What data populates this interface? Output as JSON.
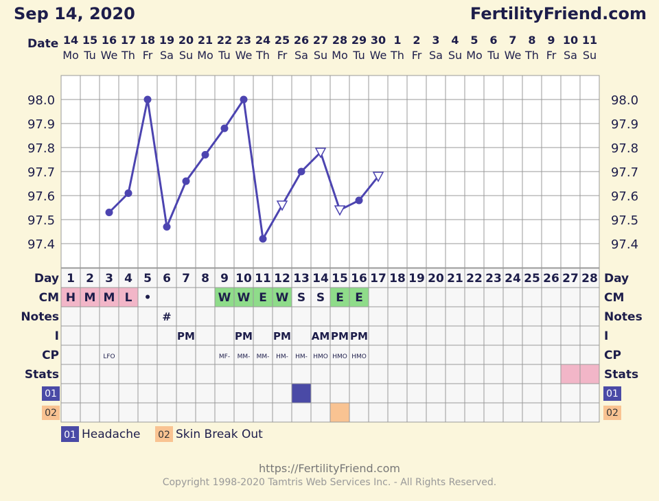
{
  "header": {
    "date": "Sep 14, 2020",
    "site": "FertilityFriend.com"
  },
  "date_label": "Date",
  "dates": [
    {
      "d": "14",
      "w": "Mo"
    },
    {
      "d": "15",
      "w": "Tu"
    },
    {
      "d": "16",
      "w": "We"
    },
    {
      "d": "17",
      "w": "Th"
    },
    {
      "d": "18",
      "w": "Fr"
    },
    {
      "d": "19",
      "w": "Sa"
    },
    {
      "d": "20",
      "w": "Su"
    },
    {
      "d": "21",
      "w": "Mo"
    },
    {
      "d": "22",
      "w": "Tu"
    },
    {
      "d": "23",
      "w": "We"
    },
    {
      "d": "24",
      "w": "Th"
    },
    {
      "d": "25",
      "w": "Fr"
    },
    {
      "d": "26",
      "w": "Sa"
    },
    {
      "d": "27",
      "w": "Su"
    },
    {
      "d": "28",
      "w": "Mo"
    },
    {
      "d": "29",
      "w": "Tu"
    },
    {
      "d": "30",
      "w": "We"
    },
    {
      "d": "1",
      "w": "Th"
    },
    {
      "d": "2",
      "w": "Fr"
    },
    {
      "d": "3",
      "w": "Sa"
    },
    {
      "d": "4",
      "w": "Su"
    },
    {
      "d": "5",
      "w": "Mo"
    },
    {
      "d": "6",
      "w": "Tu"
    },
    {
      "d": "7",
      "w": "We"
    },
    {
      "d": "8",
      "w": "Th"
    },
    {
      "d": "9",
      "w": "Fr"
    },
    {
      "d": "10",
      "w": "Sa"
    },
    {
      "d": "11",
      "w": "Su"
    }
  ],
  "row_labels": {
    "day": "Day",
    "cm": "CM",
    "notes": "Notes",
    "i": "I",
    "cp": "CP",
    "stats": "Stats",
    "s01": "01",
    "s02": "02"
  },
  "rows": {
    "cm": [
      "H",
      "M",
      "M",
      "L",
      "•",
      "",
      "",
      "",
      "W",
      "W",
      "E",
      "W",
      "S",
      "S",
      "E",
      "E",
      "",
      "",
      "",
      "",
      "",
      "",
      "",
      "",
      "",
      "",
      "",
      ""
    ],
    "notes": [
      "",
      "",
      "",
      "",
      "",
      "#",
      "",
      "",
      "",
      "",
      "",
      "",
      "",
      "",
      "",
      "",
      "",
      "",
      "",
      "",
      "",
      "",
      "",
      "",
      "",
      "",
      "",
      ""
    ],
    "i": [
      "",
      "",
      "",
      "",
      "",
      "",
      "PM",
      "",
      "",
      "PM",
      "",
      "PM",
      "",
      "AM",
      "PM",
      "PM",
      "",
      "",
      "",
      "",
      "",
      "",
      "",
      "",
      "",
      "",
      "",
      ""
    ],
    "cp": [
      "",
      "",
      "LFO",
      "",
      "",
      "",
      "",
      "",
      "MF-",
      "MM-",
      "MM-",
      "HM-",
      "HM-",
      "HMO",
      "HMO",
      "HMO",
      "",
      "",
      "",
      "",
      "",
      "",
      "",
      "",
      "",
      "",
      "",
      ""
    ]
  },
  "colors": {
    "line": "#4c44b0",
    "grid": "#999999",
    "cm_pink": "#f2b6c8",
    "cm_green": "#8fdc8a",
    "symptom1": "#4a4aa6",
    "symptom2": "#f9c392",
    "stats_pink": "#f2b6c8",
    "plot_bg": "#ffffff"
  },
  "symptoms": {
    "s01_days": [
      13
    ],
    "s02_days": [
      15
    ],
    "stats_days": [
      27,
      28
    ]
  },
  "legend": [
    {
      "code": "01",
      "label": "Headache"
    },
    {
      "code": "02",
      "label": "Skin Break Out"
    }
  ],
  "footer": {
    "url": "https://FertilityFriend.com",
    "copyright": "Copyright 1998-2020 Tamtris Web Services Inc. - All Rights Reserved."
  },
  "chart_data": {
    "type": "line",
    "xlabel": "Day",
    "ylabel": "",
    "ylim": [
      97.3,
      98.1
    ],
    "yticks": [
      "98.0",
      "97.9",
      "97.8",
      "97.7",
      "97.6",
      "97.5",
      "97.4"
    ],
    "x": [
      1,
      2,
      3,
      4,
      5,
      6,
      7,
      8,
      9,
      10,
      11,
      12,
      13,
      14,
      15,
      16,
      17,
      18,
      19,
      20,
      21,
      22,
      23,
      24,
      25,
      26,
      27,
      28
    ],
    "series": [
      {
        "values": [
          null,
          null,
          97.53,
          97.61,
          98.0,
          97.47,
          97.66,
          97.77,
          97.88,
          98.0,
          97.42,
          97.56,
          97.7,
          97.78,
          97.54,
          97.58,
          97.68,
          null,
          null,
          null,
          null,
          null,
          null,
          null,
          null,
          null,
          null,
          null
        ],
        "markers": [
          "",
          "",
          "dot",
          "dot",
          "dot",
          "dot",
          "dot",
          "dot",
          "dot",
          "dot",
          "dot",
          "tri",
          "dot",
          "tri",
          "tri",
          "dot",
          "tri",
          "",
          "",
          "",
          "",
          "",
          "",
          "",
          "",
          "",
          "",
          ""
        ]
      }
    ],
    "grid": true
  }
}
